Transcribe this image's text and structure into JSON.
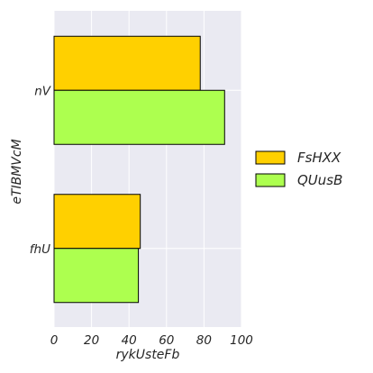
{
  "chart_data": {
    "type": "bar",
    "orientation": "horizontal",
    "title": "",
    "xlabel": "rykUsteFb",
    "ylabel": "eTIBMVcM",
    "categories": [
      "nV",
      "fhU"
    ],
    "series": [
      {
        "name": "FsHXX",
        "values": [
          78,
          46
        ],
        "color": "#ffd000"
      },
      {
        "name": "QUusB",
        "values": [
          91,
          45
        ],
        "color": "#adff4f"
      }
    ],
    "xlim": [
      0,
      100
    ],
    "xticks": [
      "0",
      "20",
      "40",
      "60",
      "80",
      "100"
    ],
    "grid": true,
    "legend_position": "right"
  },
  "colors": {
    "plot_background": "#eaeaf2",
    "grid": "#ffffff",
    "bar_edge": "#000000"
  }
}
